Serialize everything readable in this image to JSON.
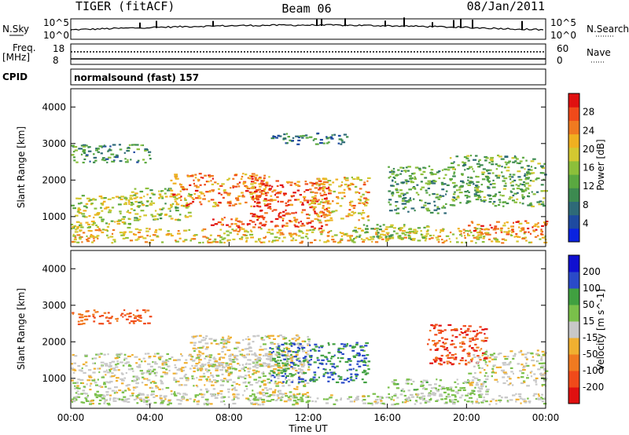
{
  "header": {
    "title": "TIGER (fitACF)",
    "beam": "Beam 06",
    "date": "08/Jan/2011"
  },
  "params": {
    "nsky_label": "N.Sky",
    "nsky_ticks": [
      "10^5",
      "10^0"
    ],
    "nsearch_label": "N.Search",
    "nsearch_ticks": [
      "10^5",
      "10^0"
    ],
    "freq_label": "Freq.",
    "freq_unit": "[MHz]",
    "freq_ticks": [
      "18",
      "8"
    ],
    "nave_label": "Nave",
    "nave_ticks": [
      "60",
      "0"
    ],
    "cpid_label": "CPID",
    "cpid_value": "normalsound (fast) 157"
  },
  "x_axis": {
    "label": "Time UT",
    "ticks": [
      "00:00",
      "04:00",
      "08:00",
      "12:00",
      "16:00",
      "20:00",
      "00:00"
    ]
  },
  "chart_data": [
    {
      "type": "heatmap",
      "panel": "power",
      "ylabel": "Slant Range [km]",
      "yticks": [
        "4000",
        "3000",
        "2000",
        "1000"
      ],
      "ylim": [
        180,
        4500
      ],
      "xlim_hours": [
        0,
        24
      ],
      "colorbar": {
        "label": "Power [dB]",
        "ticks": [
          "28",
          "24",
          "20",
          "16",
          "12",
          "8",
          "4"
        ],
        "range": [
          0,
          30
        ],
        "colors": [
          "#0a22e0",
          "#1e4aa0",
          "#2e6a78",
          "#3c8a50",
          "#5aa840",
          "#8cbf3a",
          "#d4c830",
          "#f0b020",
          "#f07a20",
          "#f04a1a",
          "#e01010"
        ]
      },
      "regions": [
        {
          "t": [
            0,
            24
          ],
          "r": [
            300,
            700
          ],
          "level": 0.65
        },
        {
          "t": [
            0,
            3
          ],
          "r": [
            700,
            1600
          ],
          "level": 0.55
        },
        {
          "t": [
            3,
            6
          ],
          "r": [
            900,
            1800
          ],
          "level": 0.5
        },
        {
          "t": [
            5,
            10
          ],
          "r": [
            1300,
            2200
          ],
          "level": 0.8
        },
        {
          "t": [
            7,
            9
          ],
          "r": [
            700,
            1000
          ],
          "level": 0.85
        },
        {
          "t": [
            9,
            13
          ],
          "r": [
            700,
            2000
          ],
          "level": 0.9
        },
        {
          "t": [
            12,
            15
          ],
          "r": [
            900,
            2100
          ],
          "level": 0.7
        },
        {
          "t": [
            14,
            18
          ],
          "r": [
            400,
            800
          ],
          "level": 0.45
        },
        {
          "t": [
            16,
            19
          ],
          "r": [
            1100,
            2400
          ],
          "level": 0.35
        },
        {
          "t": [
            19,
            24
          ],
          "r": [
            1300,
            2700
          ],
          "level": 0.4
        },
        {
          "t": [
            20,
            24
          ],
          "r": [
            500,
            900
          ],
          "level": 0.8
        },
        {
          "t": [
            0,
            4
          ],
          "r": [
            2500,
            3000
          ],
          "level": 0.3
        },
        {
          "t": [
            10,
            14
          ],
          "r": [
            3000,
            3300
          ],
          "level": 0.25
        }
      ]
    },
    {
      "type": "heatmap",
      "panel": "velocity",
      "ylabel": "Slant Range [km]",
      "yticks": [
        "4000",
        "3000",
        "2000",
        "1000"
      ],
      "ylim": [
        180,
        4500
      ],
      "xlim_hours": [
        0,
        24
      ],
      "colorbar": {
        "label": "Velocity [m s^-1]",
        "ticks": [
          "200",
          "100",
          "50",
          "15",
          "-15",
          "-50",
          "-100",
          "-200"
        ],
        "range": [
          -250,
          250
        ],
        "colors": [
          "#e01010",
          "#f04a1a",
          "#f07a20",
          "#f0b030",
          "#c8c8c8",
          "#7ac04a",
          "#40a040",
          "#2a4ac8",
          "#1010d0"
        ]
      },
      "regions": [
        {
          "t": [
            0,
            12
          ],
          "r": [
            400,
            1700
          ],
          "velocity": 0
        },
        {
          "t": [
            0,
            24
          ],
          "r": [
            300,
            600
          ],
          "velocity": 20
        },
        {
          "t": [
            6,
            12
          ],
          "r": [
            1200,
            2200
          ],
          "velocity": -10
        },
        {
          "t": [
            10,
            15
          ],
          "r": [
            900,
            2000
          ],
          "velocity": 150
        },
        {
          "t": [
            16,
            21
          ],
          "r": [
            400,
            1000
          ],
          "velocity": 40
        },
        {
          "t": [
            18,
            21
          ],
          "r": [
            1400,
            2500
          ],
          "velocity": -180
        },
        {
          "t": [
            0,
            4
          ],
          "r": [
            2500,
            2900
          ],
          "velocity": -150
        },
        {
          "t": [
            20,
            24
          ],
          "r": [
            800,
            1800
          ],
          "velocity": 0
        }
      ]
    }
  ]
}
